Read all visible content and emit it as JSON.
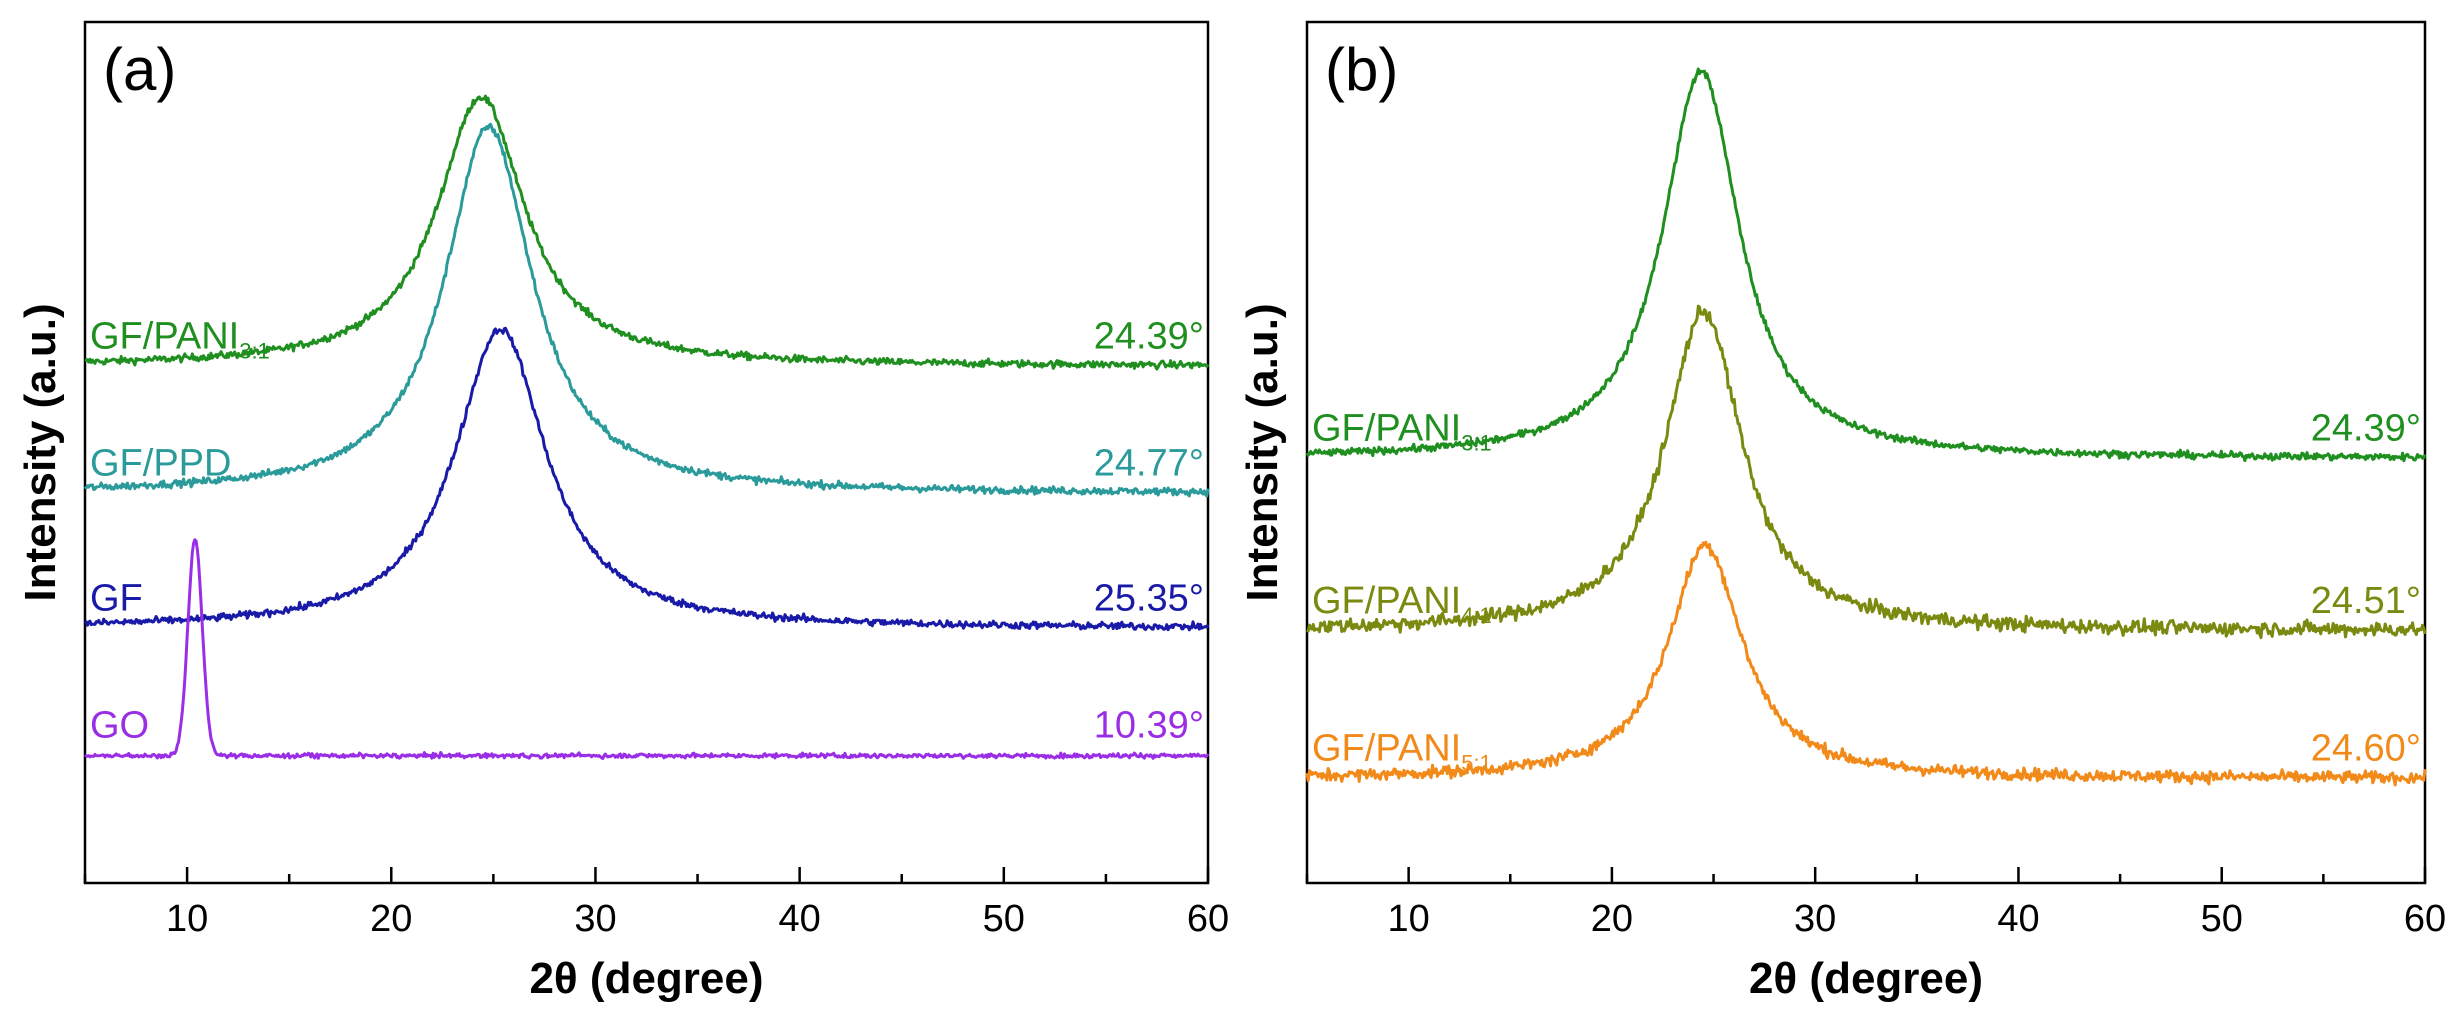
{
  "chart_data": [
    {
      "panel": "(a)",
      "type": "line",
      "xlabel": "2θ (degree)",
      "ylabel": "Intensity (a.u.)",
      "xlim": [
        5,
        60
      ],
      "xticks": [
        10,
        20,
        30,
        40,
        50,
        60
      ],
      "series": [
        {
          "name": "GF/PANI",
          "sub": "3:1",
          "color": "#1f8f1f",
          "peak_label": "24.39°",
          "peak": 24.39,
          "baseline": 6.9,
          "height": 3.6,
          "width": 2.6,
          "noise": 0.05
        },
        {
          "name": "GF/PPD",
          "sub": "",
          "color": "#2a9a9a",
          "peak_label": "24.77°",
          "peak": 24.77,
          "baseline": 5.2,
          "height": 4.9,
          "width": 2.6,
          "noise": 0.05
        },
        {
          "name": "GF",
          "sub": "",
          "color": "#1a1aa8",
          "peak_label": "25.35°",
          "peak": 25.35,
          "baseline": 3.4,
          "height": 4.0,
          "width": 2.7,
          "noise": 0.05
        },
        {
          "name": "GO",
          "sub": "",
          "color": "#9a2ee6",
          "peak_label": "10.39°",
          "peak": 10.39,
          "baseline": 1.7,
          "height": 2.9,
          "width": 0.35,
          "noise": 0.03
        }
      ]
    },
    {
      "panel": "(b)",
      "type": "line",
      "xlabel": "2θ (degree)",
      "ylabel": "Intensity (a.u.)",
      "xlim": [
        5,
        60
      ],
      "xticks": [
        10,
        20,
        30,
        40,
        50,
        60
      ],
      "series": [
        {
          "name": "GF/PANI",
          "sub": "3:1",
          "color": "#1f8f1f",
          "peak_label": "24.39°",
          "peak": 24.39,
          "baseline": 6.9,
          "height": 6.3,
          "width": 2.3,
          "noise": 0.06
        },
        {
          "name": "GF/PANI",
          "sub": "4:1",
          "color": "#7a8a10",
          "peak_label": "24.51°",
          "peak": 24.51,
          "baseline": 4.1,
          "height": 5.2,
          "width": 2.3,
          "noise": 0.12
        },
        {
          "name": "GF/PANI",
          "sub": "5:1",
          "color": "#f28a1a",
          "peak_label": "24.60°",
          "peak": 24.6,
          "baseline": 1.7,
          "height": 3.8,
          "width": 2.2,
          "noise": 0.1
        }
      ]
    }
  ]
}
